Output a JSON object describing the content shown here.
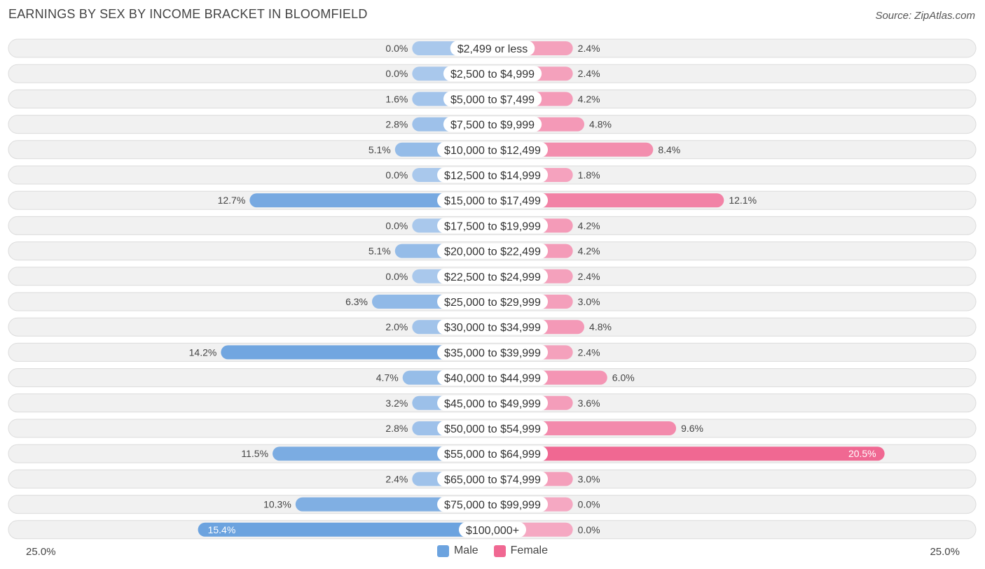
{
  "header": {
    "title": "EARNINGS BY SEX BY INCOME BRACKET IN BLOOMFIELD",
    "source": "Source: ZipAtlas.com"
  },
  "axis": {
    "left_label": "25.0%",
    "right_label": "25.0%"
  },
  "legend": {
    "male_label": "Male",
    "female_label": "Female"
  },
  "colors": {
    "male_light": "#a9c8ec",
    "male_dark": "#6ca3df",
    "female_light": "#f5a8c2",
    "female_dark": "#f06892",
    "row_bg": "#f1f1f1",
    "row_border": "#dcdcdc"
  },
  "chart_data": {
    "type": "bar",
    "orientation": "horizontal-diverging",
    "title": "EARNINGS BY SEX BY INCOME BRACKET IN BLOOMFIELD",
    "xlim": [
      -25.0,
      25.0
    ],
    "unit": "%",
    "categories": [
      "$2,499 or less",
      "$2,500 to $4,999",
      "$5,000 to $7,499",
      "$7,500 to $9,999",
      "$10,000 to $12,499",
      "$12,500 to $14,999",
      "$15,000 to $17,499",
      "$17,500 to $19,999",
      "$20,000 to $22,499",
      "$22,500 to $24,999",
      "$25,000 to $29,999",
      "$30,000 to $34,999",
      "$35,000 to $39,999",
      "$40,000 to $44,999",
      "$45,000 to $49,999",
      "$50,000 to $54,999",
      "$55,000 to $64,999",
      "$65,000 to $74,999",
      "$75,000 to $99,999",
      "$100,000+"
    ],
    "series": [
      {
        "name": "Male",
        "values": [
          0.0,
          0.0,
          1.6,
          2.8,
          5.1,
          0.0,
          12.7,
          0.0,
          5.1,
          0.0,
          6.3,
          2.0,
          14.2,
          4.7,
          3.2,
          2.8,
          11.5,
          2.4,
          10.3,
          15.4
        ],
        "labels": [
          "0.0%",
          "0.0%",
          "1.6%",
          "2.8%",
          "5.1%",
          "0.0%",
          "12.7%",
          "0.0%",
          "5.1%",
          "0.0%",
          "6.3%",
          "2.0%",
          "14.2%",
          "4.7%",
          "3.2%",
          "2.8%",
          "11.5%",
          "2.4%",
          "10.3%",
          "15.4%"
        ]
      },
      {
        "name": "Female",
        "values": [
          2.4,
          2.4,
          4.2,
          4.8,
          8.4,
          1.8,
          12.1,
          4.2,
          4.2,
          2.4,
          3.0,
          4.8,
          2.4,
          6.0,
          3.6,
          9.6,
          20.5,
          3.0,
          0.0,
          0.0
        ],
        "labels": [
          "2.4%",
          "2.4%",
          "4.2%",
          "4.8%",
          "8.4%",
          "1.8%",
          "12.1%",
          "4.2%",
          "4.2%",
          "2.4%",
          "3.0%",
          "4.8%",
          "2.4%",
          "6.0%",
          "3.6%",
          "9.6%",
          "20.5%",
          "3.0%",
          "0.0%",
          "0.0%"
        ]
      }
    ]
  }
}
